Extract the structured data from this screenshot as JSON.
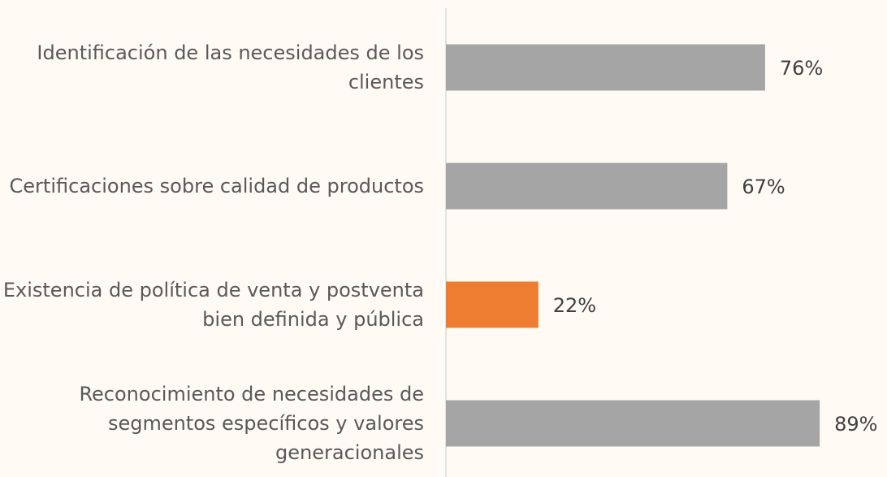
{
  "chart_data": {
    "type": "bar",
    "orientation": "horizontal",
    "categories": [
      "Identificación de las necesidades de los clientes",
      "Certificaciones sobre calidad de productos",
      "Existencia de política de venta y postventa bien definida y pública",
      "Reconocimiento de necesidades de segmentos específicos y valores generacionales"
    ],
    "values": [
      76,
      67,
      22,
      89
    ],
    "value_labels": [
      "76%",
      "67%",
      "22%",
      "89%"
    ],
    "colors": [
      "#a5a5a5",
      "#a5a5a5",
      "#ed7d31",
      "#a5a5a5"
    ],
    "xlim": [
      0,
      100
    ]
  }
}
